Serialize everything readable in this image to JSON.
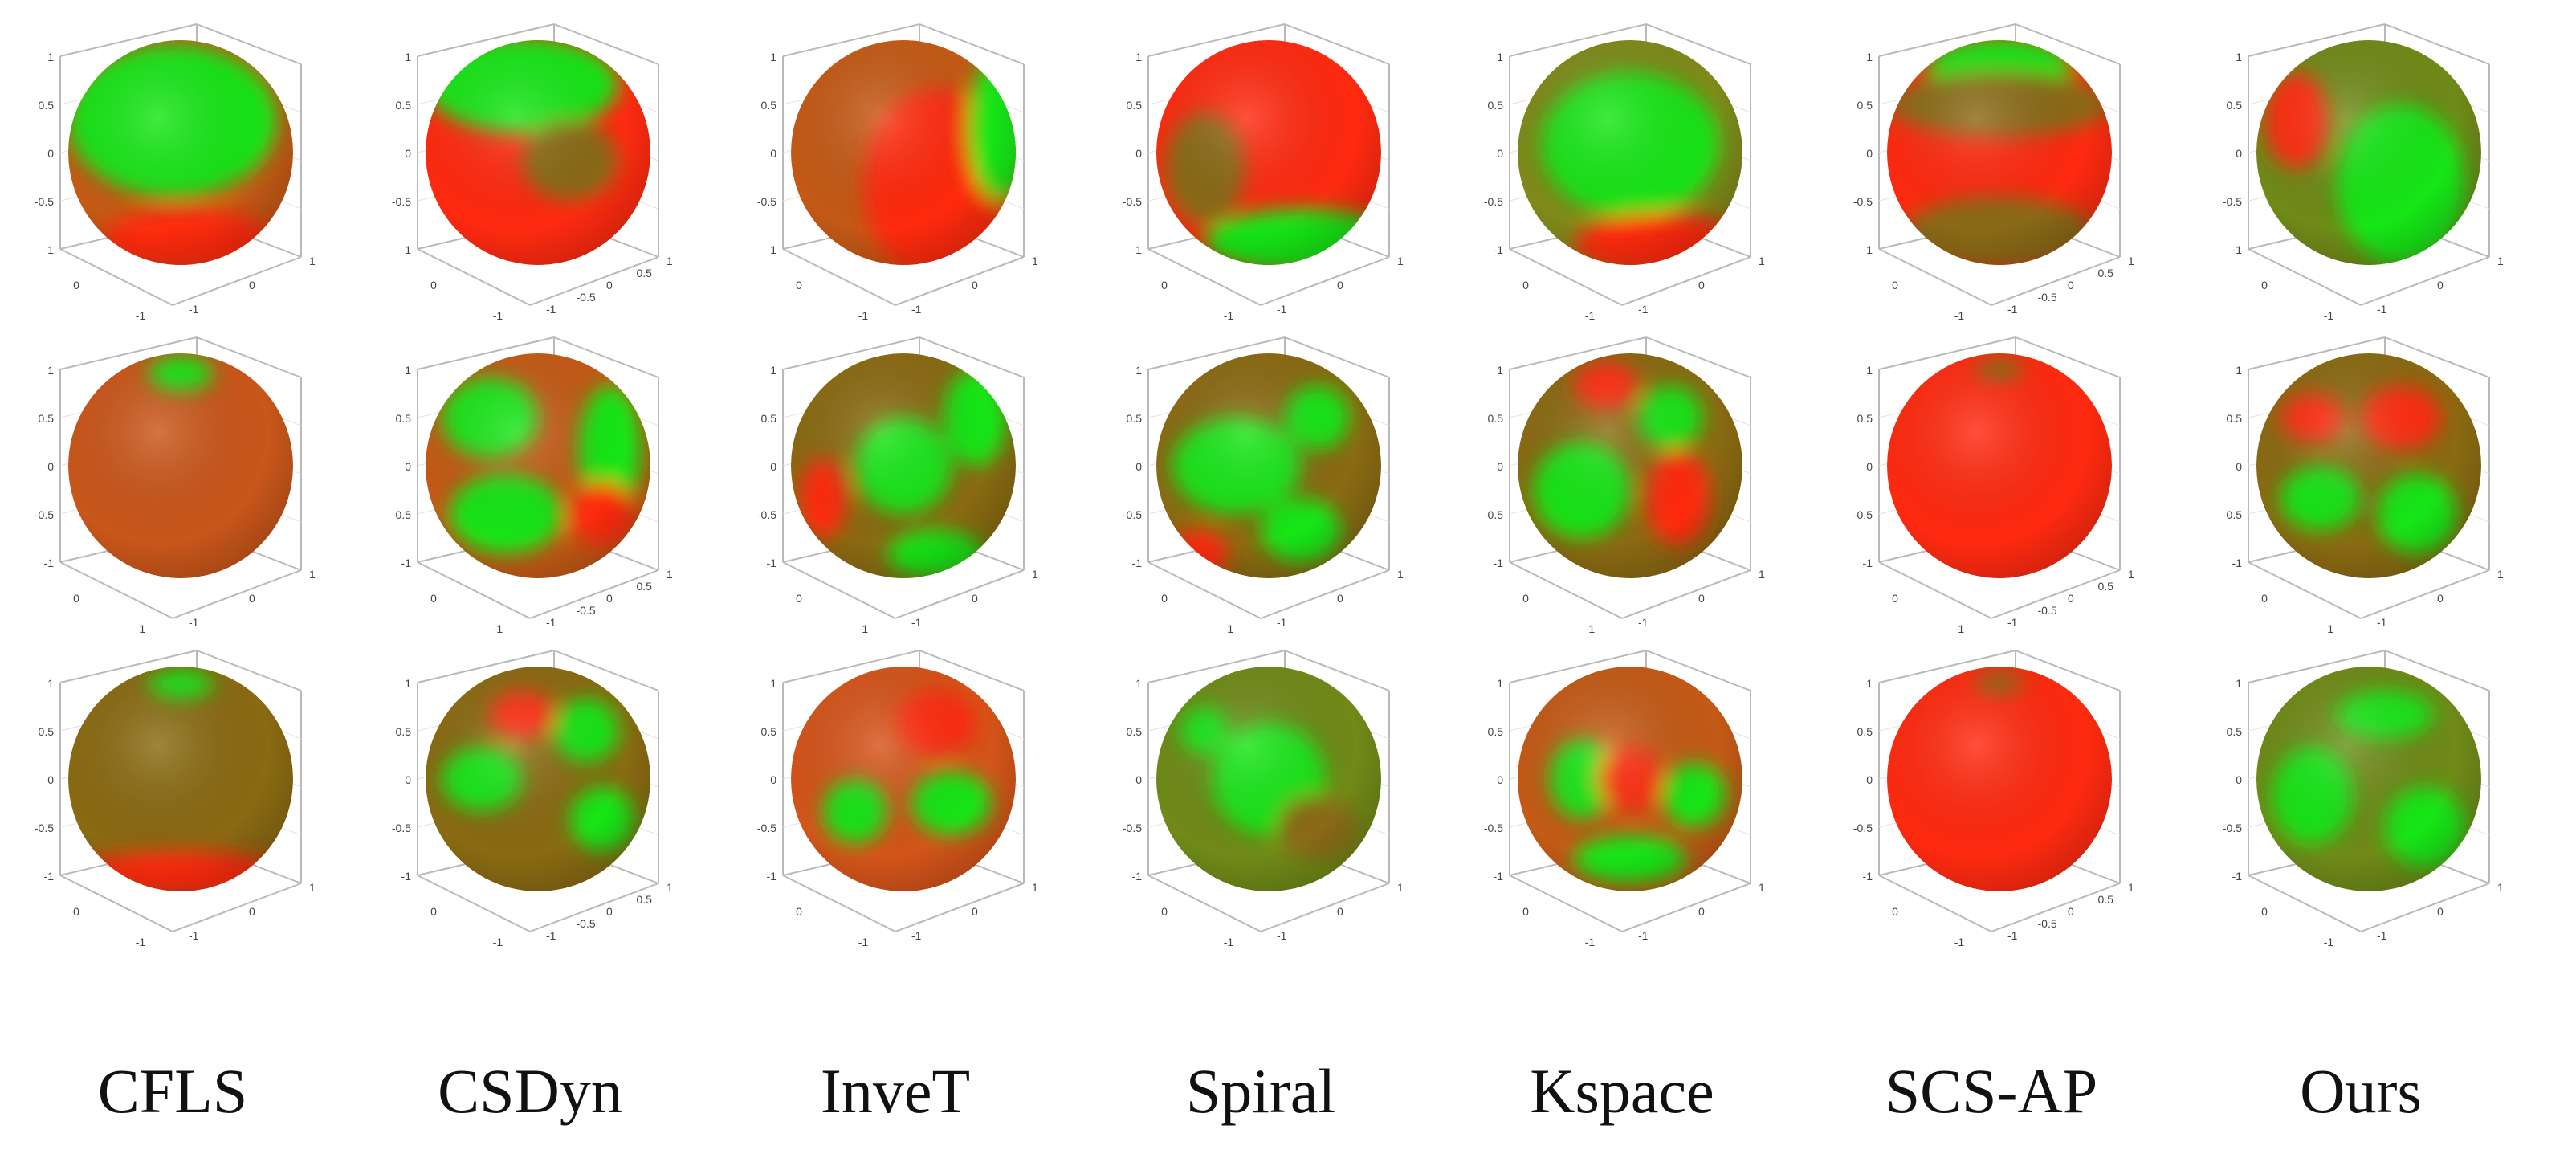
{
  "columns": [
    {
      "label": "CFLS"
    },
    {
      "label": "CSDyn"
    },
    {
      "label": "InveT"
    },
    {
      "label": "Spiral"
    },
    {
      "label": "Kspace"
    },
    {
      "label": "SCS-AP"
    },
    {
      "label": "Ours"
    }
  ],
  "axis_ticks": {
    "vertical": [
      "1",
      "0.5",
      "0",
      "-0.5",
      "-1"
    ],
    "vertical_coarse": [
      "1",
      "0",
      "-1"
    ],
    "floor_left": [
      "0",
      "-1"
    ],
    "floor_right": [
      "1",
      "0",
      "-1"
    ],
    "floor_right_fine": [
      "1",
      "0.5",
      "0",
      "-0.5",
      "-1"
    ]
  },
  "colors": {
    "red": "#ff2a10",
    "green": "#14e614",
    "olive": "#8a6a12",
    "orange_red": "#d4541a",
    "axis": "#b9b9b9",
    "tick_text": "#444444"
  },
  "grid_note_rows": 3,
  "cells": [
    {
      "row": 0,
      "col": 0,
      "name": "cfls-row1",
      "base": "#c45a16",
      "patches": [
        [
          "green",
          -10,
          -40,
          130,
          95
        ],
        [
          "red",
          10,
          110,
          110,
          40
        ]
      ]
    },
    {
      "row": 0,
      "col": 1,
      "name": "csdyn-row1",
      "base": "#ff2a10",
      "patches": [
        [
          "green",
          -20,
          -85,
          120,
          60
        ],
        [
          "olive",
          40,
          10,
          60,
          50
        ]
      ]
    },
    {
      "row": 0,
      "col": 2,
      "name": "invet-row1",
      "base": "#c45a16",
      "patches": [
        [
          "red",
          40,
          40,
          90,
          120
        ],
        [
          "green",
          120,
          -30,
          40,
          90
        ]
      ]
    },
    {
      "row": 0,
      "col": 3,
      "name": "spiral-row1",
      "base": "#ff2a10",
      "patches": [
        [
          "green",
          40,
          110,
          120,
          40
        ],
        [
          "olive",
          -80,
          20,
          50,
          70
        ]
      ]
    },
    {
      "row": 0,
      "col": 4,
      "name": "kspace-row1",
      "base": "#7f8a1a",
      "patches": [
        [
          "green",
          0,
          -10,
          110,
          90
        ],
        [
          "red",
          40,
          115,
          110,
          40
        ]
      ]
    },
    {
      "row": 0,
      "col": 5,
      "name": "scs-ap-row1",
      "base": "#ff2a10",
      "patches": [
        [
          "green",
          0,
          -105,
          90,
          40
        ],
        [
          "olive",
          0,
          -60,
          140,
          40
        ],
        [
          "olive",
          0,
          100,
          120,
          45
        ]
      ]
    },
    {
      "row": 0,
      "col": 6,
      "name": "ours-row1",
      "base": "#6f8a18",
      "patches": [
        [
          "green",
          40,
          40,
          80,
          100
        ],
        [
          "red",
          -90,
          -40,
          40,
          60
        ]
      ]
    },
    {
      "row": 1,
      "col": 0,
      "name": "cfls-row2",
      "base": "#c9561a",
      "patches": [
        [
          "green",
          0,
          -115,
          40,
          22
        ]
      ]
    },
    {
      "row": 1,
      "col": 1,
      "name": "csdyn-row2",
      "base": "#c45a16",
      "patches": [
        [
          "green",
          -60,
          -60,
          60,
          50
        ],
        [
          "green",
          -40,
          60,
          70,
          50
        ],
        [
          "green",
          90,
          -20,
          40,
          80
        ],
        [
          "red",
          80,
          60,
          40,
          40
        ]
      ]
    },
    {
      "row": 1,
      "col": 2,
      "name": "invet-row2",
      "base": "#8a6a12",
      "patches": [
        [
          "green",
          0,
          0,
          60,
          60
        ],
        [
          "green",
          90,
          -60,
          40,
          60
        ],
        [
          "red",
          -100,
          40,
          30,
          50
        ],
        [
          "green",
          40,
          110,
          60,
          30
        ]
      ]
    },
    {
      "row": 1,
      "col": 3,
      "name": "spiral-row2",
      "base": "#8a6a12",
      "patches": [
        [
          "green",
          -40,
          0,
          80,
          60
        ],
        [
          "green",
          60,
          -60,
          40,
          40
        ],
        [
          "red",
          -90,
          110,
          40,
          30
        ],
        [
          "green",
          40,
          80,
          50,
          40
        ]
      ]
    },
    {
      "row": 1,
      "col": 4,
      "name": "kspace-row2",
      "base": "#8a6a12",
      "patches": [
        [
          "green",
          -60,
          30,
          60,
          60
        ],
        [
          "green",
          50,
          -60,
          40,
          40
        ],
        [
          "red",
          60,
          40,
          40,
          60
        ],
        [
          "red",
          -30,
          -100,
          40,
          30
        ]
      ]
    },
    {
      "row": 1,
      "col": 5,
      "name": "scs-ap-row2",
      "base": "#ff2a10",
      "patches": [
        [
          "olive",
          0,
          -120,
          30,
          14
        ]
      ]
    },
    {
      "row": 1,
      "col": 6,
      "name": "ours-row2",
      "base": "#8a6a12",
      "patches": [
        [
          "green",
          -60,
          40,
          50,
          40
        ],
        [
          "green",
          60,
          60,
          50,
          50
        ],
        [
          "red",
          40,
          -60,
          50,
          40
        ],
        [
          "red",
          -70,
          -60,
          40,
          30
        ]
      ]
    },
    {
      "row": 2,
      "col": 0,
      "name": "cfls-row3",
      "base": "#8a6a12",
      "patches": [
        [
          "green",
          0,
          -118,
          40,
          18
        ],
        [
          "red",
          0,
          120,
          140,
          30
        ]
      ]
    },
    {
      "row": 2,
      "col": 1,
      "name": "csdyn-row3",
      "base": "#8a6a12",
      "patches": [
        [
          "green",
          -70,
          0,
          50,
          40
        ],
        [
          "green",
          60,
          -60,
          40,
          40
        ],
        [
          "green",
          80,
          50,
          40,
          40
        ],
        [
          "red",
          -20,
          -80,
          40,
          30
        ]
      ]
    },
    {
      "row": 2,
      "col": 2,
      "name": "invet-row3",
      "base": "#d4541a",
      "patches": [
        [
          "green",
          -60,
          40,
          40,
          40
        ],
        [
          "green",
          60,
          30,
          50,
          40
        ],
        [
          "red",
          40,
          -70,
          50,
          40
        ]
      ]
    },
    {
      "row": 2,
      "col": 3,
      "name": "spiral-row3",
      "base": "#6f8a18",
      "patches": [
        [
          "green",
          0,
          0,
          70,
          70
        ],
        [
          "green",
          -80,
          -60,
          30,
          30
        ],
        [
          "olive",
          60,
          60,
          50,
          40
        ]
      ]
    },
    {
      "row": 2,
      "col": 4,
      "name": "kspace-row3",
      "base": "#c45a16",
      "patches": [
        [
          "green",
          -60,
          0,
          40,
          50
        ],
        [
          "green",
          80,
          20,
          40,
          40
        ],
        [
          "red",
          0,
          0,
          40,
          40
        ],
        [
          "green",
          0,
          100,
          70,
          30
        ]
      ]
    },
    {
      "row": 2,
      "col": 5,
      "name": "scs-ap-row3",
      "base": "#ff2a10",
      "patches": [
        [
          "olive",
          0,
          -120,
          30,
          14
        ]
      ]
    },
    {
      "row": 2,
      "col": 6,
      "name": "ours-row3",
      "base": "#6f8a18",
      "patches": [
        [
          "green",
          -70,
          20,
          50,
          60
        ],
        [
          "green",
          70,
          60,
          50,
          50
        ],
        [
          "green",
          20,
          -80,
          60,
          30
        ]
      ]
    }
  ]
}
